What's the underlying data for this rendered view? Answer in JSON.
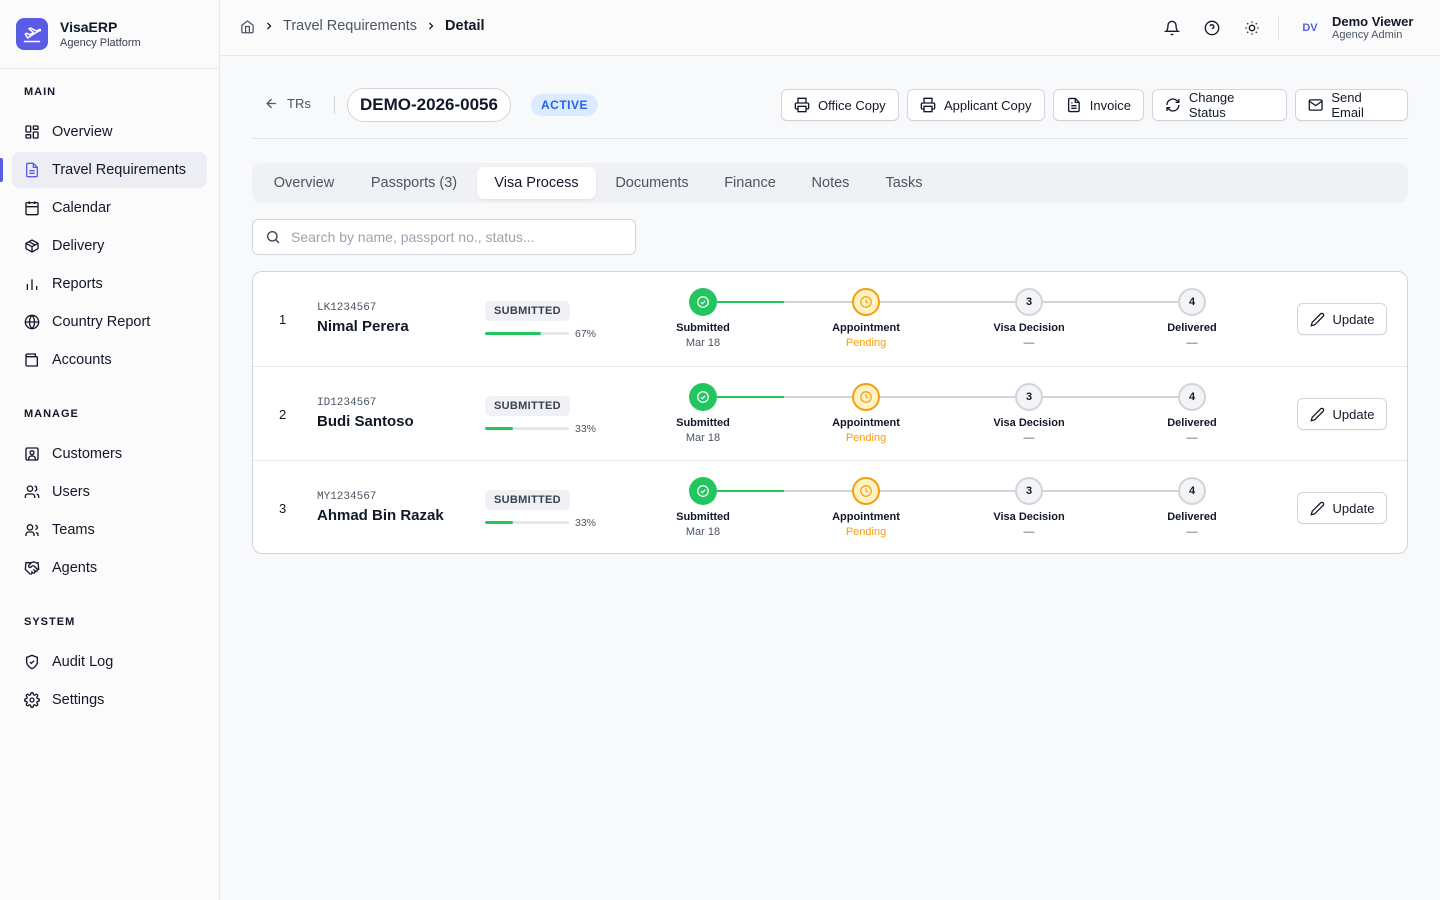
{
  "brand": {
    "name": "VisaERP",
    "subtitle": "Agency Platform",
    "accent": "#5b5ce6"
  },
  "sidebar": {
    "sections": [
      {
        "title": "MAIN",
        "items": [
          {
            "label": "Overview",
            "icon": "grid-icon"
          },
          {
            "label": "Travel Requirements",
            "icon": "document-icon",
            "active": true
          },
          {
            "label": "Calendar",
            "icon": "calendar-icon"
          },
          {
            "label": "Delivery",
            "icon": "package-icon"
          },
          {
            "label": "Reports",
            "icon": "bar-chart-icon"
          },
          {
            "label": "Country Report",
            "icon": "globe-icon"
          },
          {
            "label": "Accounts",
            "icon": "wallet-icon"
          }
        ]
      },
      {
        "title": "MANAGE",
        "items": [
          {
            "label": "Customers",
            "icon": "contact-icon"
          },
          {
            "label": "Users",
            "icon": "users-icon"
          },
          {
            "label": "Teams",
            "icon": "team-icon"
          },
          {
            "label": "Agents",
            "icon": "handshake-icon"
          }
        ]
      },
      {
        "title": "SYSTEM",
        "items": [
          {
            "label": "Audit Log",
            "icon": "shield-check-icon"
          },
          {
            "label": "Settings",
            "icon": "gear-icon"
          }
        ]
      }
    ]
  },
  "header": {
    "breadcrumb": {
      "parent": "Travel Requirements",
      "current": "Detail"
    },
    "user": {
      "initials": "DV",
      "name": "Demo Viewer",
      "role": "Agency Admin"
    }
  },
  "toolbar": {
    "back_label": "TRs",
    "record_code": "DEMO-2026-0056",
    "status": "ACTIVE",
    "buttons": {
      "office_copy": "Office Copy",
      "applicant_copy": "Applicant Copy",
      "invoice": "Invoice",
      "change_status": "Change Status",
      "send_email": "Send Email"
    }
  },
  "tabs": {
    "overview": "Overview",
    "passports": "Passports (3)",
    "visa_process": "Visa Process",
    "documents": "Documents",
    "finance": "Finance",
    "notes": "Notes",
    "tasks": "Tasks",
    "active": "visa_process"
  },
  "search": {
    "placeholder": "Search by name, passport no., status..."
  },
  "steps": {
    "s1": "Submitted",
    "s2": "Appointment",
    "s3": "Visa Decision",
    "s4": "Delivered",
    "n3": "3",
    "n4": "4"
  },
  "rows": [
    {
      "num": "1",
      "passport": "LK1234567",
      "name": "Nimal Perera",
      "status": "SUBMITTED",
      "progress_pct": 67,
      "progress_label": "67%",
      "submitted_date": "Mar 18",
      "appointment": "Pending",
      "visa_decision": "—",
      "delivered": "—",
      "update_label": "Update"
    },
    {
      "num": "2",
      "passport": "ID1234567",
      "name": "Budi Santoso",
      "status": "SUBMITTED",
      "progress_pct": 33,
      "progress_label": "33%",
      "submitted_date": "Mar 18",
      "appointment": "Pending",
      "visa_decision": "—",
      "delivered": "—",
      "update_label": "Update"
    },
    {
      "num": "3",
      "passport": "MY1234567",
      "name": "Ahmad Bin Razak",
      "status": "SUBMITTED",
      "progress_pct": 33,
      "progress_label": "33%",
      "submitted_date": "Mar 18",
      "appointment": "Pending",
      "visa_decision": "—",
      "delivered": "—",
      "update_label": "Update"
    }
  ],
  "colors": {
    "success": "#22c55e",
    "pending": "#f59e0b",
    "status_badge_bg": "#dbeafe",
    "status_badge_text": "#2563eb"
  }
}
